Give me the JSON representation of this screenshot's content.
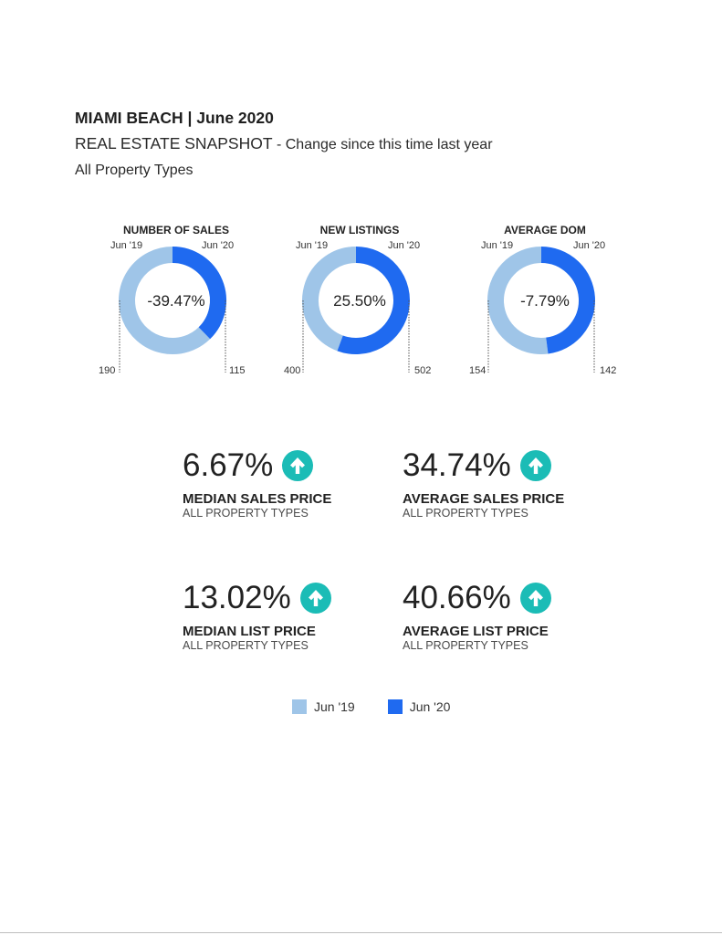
{
  "header": {
    "title": "MIAMI BEACH | June 2020",
    "subtitle_main": "REAL ESTATE SNAPSHOT",
    "subtitle_note": " - Change since this time last year",
    "property_type": "All Property Types"
  },
  "colors": {
    "jun19": "#9fc5e8",
    "jun20": "#1f6af0",
    "arrow": "#1bbcb6"
  },
  "chart_data": [
    {
      "type": "pie",
      "title": "NUMBER OF SALES",
      "categories": [
        "Jun '19",
        "Jun '20"
      ],
      "values": [
        190,
        115
      ],
      "center_label": "-39.47%"
    },
    {
      "type": "pie",
      "title": "NEW LISTINGS",
      "categories": [
        "Jun '19",
        "Jun '20"
      ],
      "values": [
        400,
        502
      ],
      "center_label": "25.50%"
    },
    {
      "type": "pie",
      "title": "AVERAGE DOM",
      "categories": [
        "Jun '19",
        "Jun '20"
      ],
      "values": [
        154,
        142
      ],
      "center_label": "-7.79%"
    }
  ],
  "metrics": [
    {
      "value": "6.67%",
      "label": "MEDIAN SALES PRICE",
      "sub": "ALL PROPERTY TYPES",
      "icon": "arrow-up-circle-icon"
    },
    {
      "value": "34.74%",
      "label": "AVERAGE SALES PRICE",
      "sub": "ALL PROPERTY TYPES",
      "icon": "arrow-up-circle-icon"
    },
    {
      "value": "13.02%",
      "label": "MEDIAN LIST PRICE",
      "sub": "ALL PROPERTY TYPES",
      "icon": "arrow-up-circle-icon"
    },
    {
      "value": "40.66%",
      "label": "AVERAGE LIST PRICE",
      "sub": "ALL PROPERTY TYPES",
      "icon": "arrow-up-circle-icon"
    }
  ],
  "legend": [
    {
      "label": "Jun '19",
      "color": "#9fc5e8"
    },
    {
      "label": "Jun '20",
      "color": "#1f6af0"
    }
  ]
}
